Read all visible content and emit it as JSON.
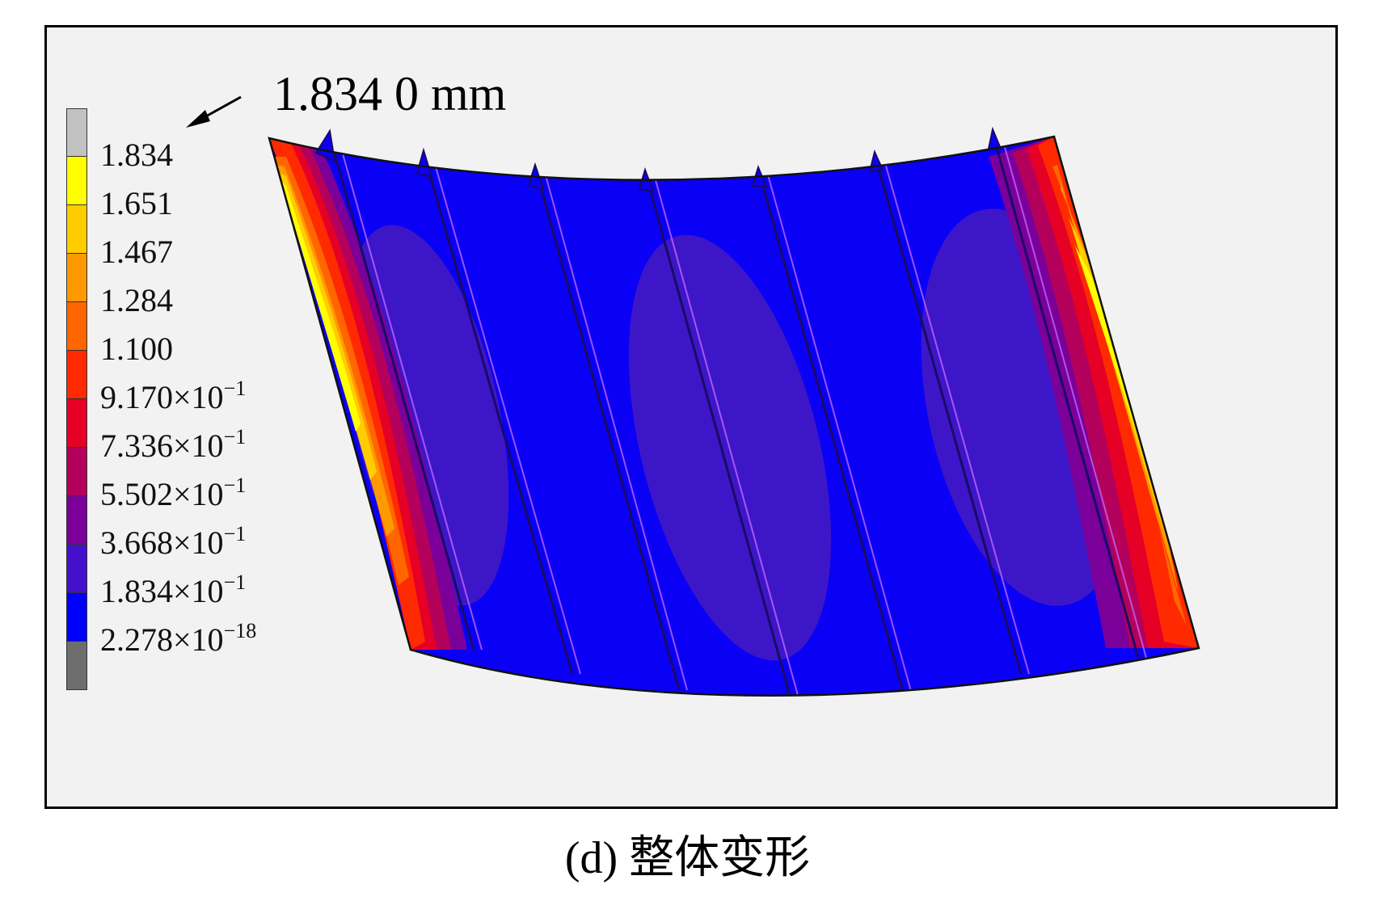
{
  "figure": {
    "caption": "(d) 整体变形",
    "max_annotation": "1.834 0 mm"
  },
  "legend": {
    "levels": [
      {
        "mantissa": "1.834",
        "exp": "",
        "color": "#c2c2c2"
      },
      {
        "mantissa": "1.651",
        "exp": "",
        "color": "#ffff00"
      },
      {
        "mantissa": "1.467",
        "exp": "",
        "color": "#ffcc00"
      },
      {
        "mantissa": "1.284",
        "exp": "",
        "color": "#ff9900"
      },
      {
        "mantissa": "1.100",
        "exp": "",
        "color": "#ff6600"
      },
      {
        "mantissa": "9.170×10",
        "exp": "−1",
        "color": "#ff2a00"
      },
      {
        "mantissa": "7.336×10",
        "exp": "−1",
        "color": "#e60026"
      },
      {
        "mantissa": "5.502×10",
        "exp": "−1",
        "color": "#b3005a"
      },
      {
        "mantissa": "3.668×10",
        "exp": "−1",
        "color": "#7a0099"
      },
      {
        "mantissa": "1.834×10",
        "exp": "−1",
        "color": "#4410cc"
      },
      {
        "mantissa": "2.278×10",
        "exp": "−18",
        "color": "#0000ff"
      }
    ],
    "bottom_color": "#6e6e6e"
  },
  "colors": {
    "panel_blue": "#0a00f5",
    "mild_purple": "#3d16c8",
    "edge_outline": "#c266ff"
  }
}
